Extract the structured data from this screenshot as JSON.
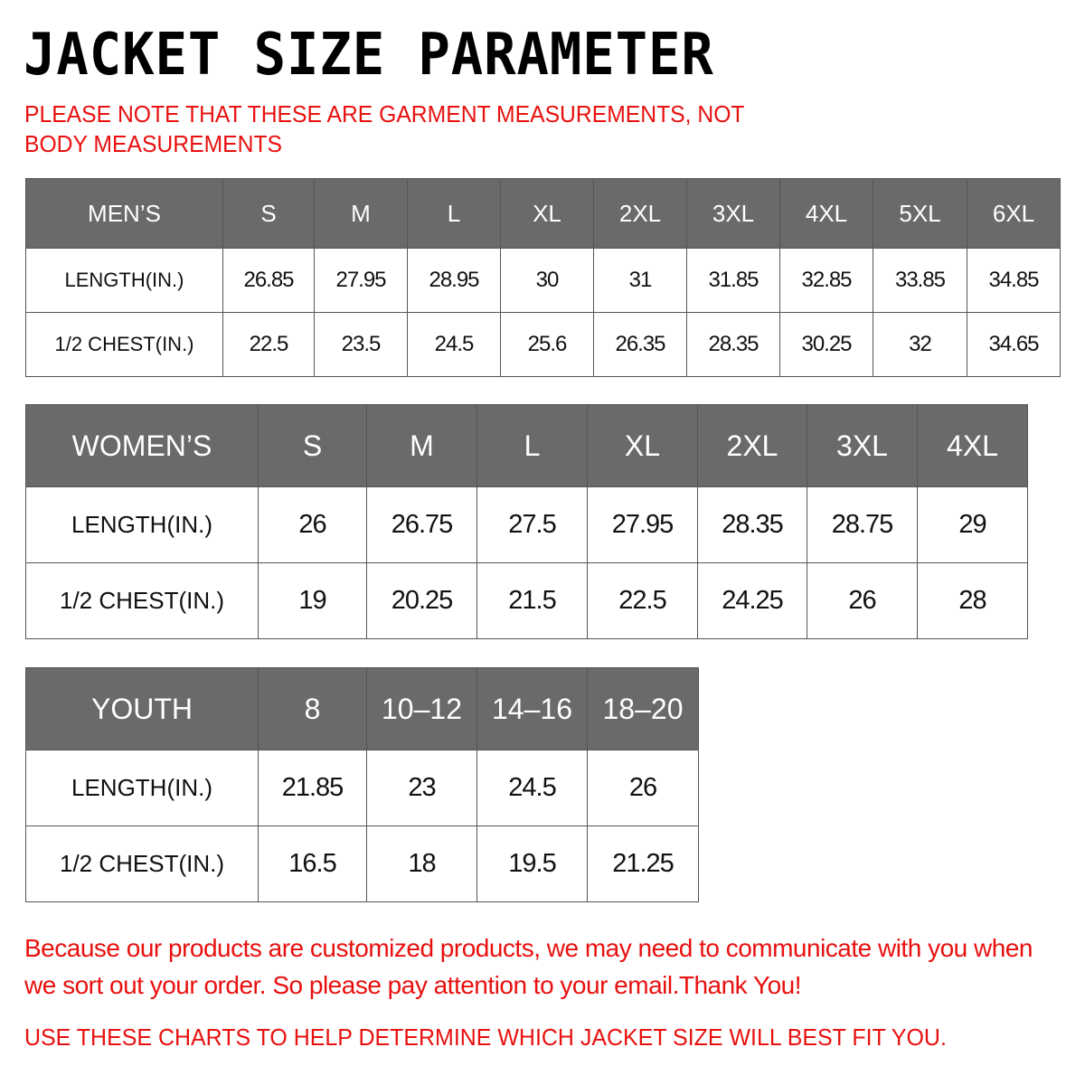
{
  "title": "JACKET  SIZE  PARAMETER",
  "note": "PLEASE NOTE THAT THESE ARE GARMENT MEASUREMENTS, NOT BODY MEASUREMENTS",
  "colors": {
    "header_bg": "#6a6a6a",
    "note_red": "#e8110f"
  },
  "tables": {
    "men": {
      "header": [
        "MEN’S",
        "S",
        "M",
        "L",
        "XL",
        "2XL",
        "3XL",
        "4XL",
        "5XL",
        "6XL"
      ],
      "rows": [
        [
          "LENGTH(IN.)",
          "26.85",
          "27.95",
          "28.95",
          "30",
          "31",
          "31.85",
          "32.85",
          "33.85",
          "34.85"
        ],
        [
          "1/2 CHEST(IN.)",
          "22.5",
          "23.5",
          "24.5",
          "25.6",
          "26.35",
          "28.35",
          "30.25",
          "32",
          "34.65"
        ]
      ]
    },
    "women": {
      "header": [
        "WOMEN’S",
        "S",
        "M",
        "L",
        "XL",
        "2XL",
        "3XL",
        "4XL"
      ],
      "rows": [
        [
          "LENGTH(IN.)",
          "26",
          "26.75",
          "27.5",
          "27.95",
          "28.35",
          "28.75",
          "29"
        ],
        [
          "1/2 CHEST(IN.)",
          "19",
          "20.25",
          "21.5",
          "22.5",
          "24.25",
          "26",
          "28"
        ]
      ]
    },
    "youth": {
      "header": [
        "YOUTH",
        "8",
        "10–12",
        "14–16",
        "18–20"
      ],
      "rows": [
        [
          "LENGTH(IN.)",
          "21.85",
          "23",
          "24.5",
          "26"
        ],
        [
          "1/2 CHEST(IN.)",
          "16.5",
          "18",
          "19.5",
          "21.25"
        ]
      ]
    }
  },
  "footer": {
    "message": "Because our products are customized products, we may need to communicate with you when we sort out your order. So please pay attention to your email.Thank You!",
    "advice": "USE THESE CHARTS TO HELP DETERMINE WHICH JACKET SIZE WILL BEST FIT YOU."
  }
}
